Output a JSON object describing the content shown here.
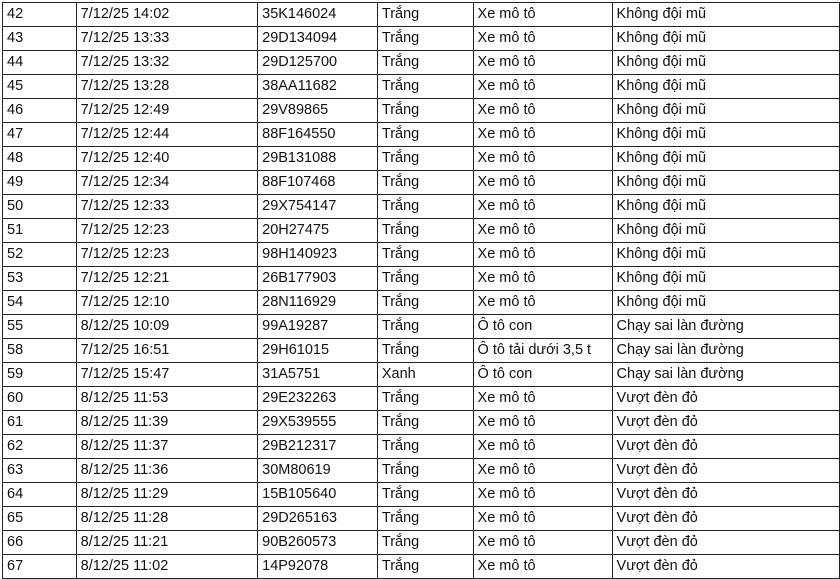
{
  "rows": [
    [
      "42",
      "7/12/25 14:02",
      "35K146024",
      "Trắng",
      "Xe mô tô",
      "Không đội mũ"
    ],
    [
      "43",
      "7/12/25 13:33",
      "29D134094",
      "Trắng",
      "Xe mô tô",
      "Không đội mũ"
    ],
    [
      "44",
      "7/12/25 13:32",
      "29D125700",
      "Trắng",
      "Xe mô tô",
      "Không đội mũ"
    ],
    [
      "45",
      "7/12/25 13:28",
      "38AA11682",
      "Trắng",
      "Xe mô tô",
      "Không đội mũ"
    ],
    [
      "46",
      "7/12/25 12:49",
      "29V89865",
      "Trắng",
      "Xe mô tô",
      "Không đội mũ"
    ],
    [
      "47",
      "7/12/25 12:44",
      "88F164550",
      "Trắng",
      "Xe mô tô",
      "Không đội mũ"
    ],
    [
      "48",
      "7/12/25 12:40",
      "29B131088",
      "Trắng",
      "Xe mô tô",
      "Không đội mũ"
    ],
    [
      "49",
      "7/12/25 12:34",
      "88F107468",
      "Trắng",
      "Xe mô tô",
      "Không đội mũ"
    ],
    [
      "50",
      "7/12/25 12:33",
      "29X754147",
      "Trắng",
      "Xe mô tô",
      "Không đội mũ"
    ],
    [
      "51",
      "7/12/25 12:23",
      "20H27475",
      "Trắng",
      "Xe mô tô",
      "Không đội mũ"
    ],
    [
      "52",
      "7/12/25 12:23",
      "98H140923",
      "Trắng",
      "Xe mô tô",
      "Không đội mũ"
    ],
    [
      "53",
      "7/12/25 12:21",
      "26B177903",
      "Trắng",
      "Xe mô tô",
      "Không đội mũ"
    ],
    [
      "54",
      "7/12/25 12:10",
      "28N116929",
      "Trắng",
      "Xe mô tô",
      "Không đội mũ"
    ],
    [
      "55",
      "8/12/25 10:09",
      "99A19287",
      "Trắng",
      "Ô tô con",
      "Chạy sai làn đường"
    ],
    [
      "58",
      "7/12/25 16:51",
      "29H61015",
      "Trắng",
      "Ô tô tải dưới 3,5 t",
      "Chạy sai làn đường"
    ],
    [
      "59",
      "7/12/25 15:47",
      "31A5751",
      "Xanh",
      "Ô tô con",
      "Chạy sai làn đường"
    ],
    [
      "60",
      "8/12/25 11:53",
      "29E232263",
      "Trắng",
      "Xe mô tô",
      "Vượt đèn đỏ"
    ],
    [
      "61",
      "8/12/25 11:39",
      "29X539555",
      "Trắng",
      "Xe mô tô",
      "Vượt đèn đỏ"
    ],
    [
      "62",
      "8/12/25 11:37",
      "29B212317",
      "Trắng",
      "Xe mô tô",
      "Vượt đèn đỏ"
    ],
    [
      "63",
      "8/12/25 11:36",
      "30M80619",
      "Trắng",
      "Xe mô tô",
      "Vượt đèn đỏ"
    ],
    [
      "64",
      "8/12/25 11:29",
      "15B105640",
      "Trắng",
      "Xe mô tô",
      "Vượt đèn đỏ"
    ],
    [
      "65",
      "8/12/25 11:28",
      "29D265163",
      "Trắng",
      "Xe mô tô",
      "Vượt đèn đỏ"
    ],
    [
      "66",
      "8/12/25 11:21",
      "90B260573",
      "Trắng",
      "Xe mô tô",
      "Vượt đèn đỏ"
    ],
    [
      "67",
      "8/12/25 11:02",
      "14P92078",
      "Trắng",
      "Xe mô tô",
      "Vượt đèn đỏ"
    ]
  ]
}
